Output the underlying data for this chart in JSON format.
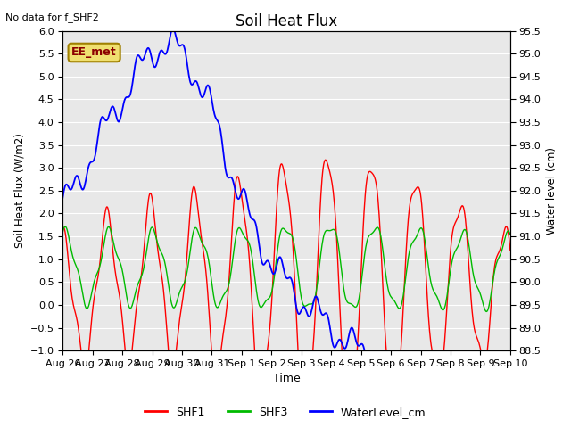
{
  "title": "Soil Heat Flux",
  "xlabel": "Time",
  "ylabel_left": "Soil Heat Flux (W/m2)",
  "ylabel_right": "Water level (cm)",
  "ylim_left": [
    -1.0,
    6.0
  ],
  "ylim_right": [
    88.5,
    95.5
  ],
  "yticks_left": [
    -1.0,
    -0.5,
    0.0,
    0.5,
    1.0,
    1.5,
    2.0,
    2.5,
    3.0,
    3.5,
    4.0,
    4.5,
    5.0,
    5.5,
    6.0
  ],
  "yticks_right": [
    88.5,
    89.0,
    89.5,
    90.0,
    90.5,
    91.0,
    91.5,
    92.0,
    92.5,
    93.0,
    93.5,
    94.0,
    94.5,
    95.0,
    95.5
  ],
  "bg_color": "#e8e8e8",
  "fig_color": "#ffffff",
  "note_text": "No data for f_SHF2",
  "box_text": "EE_met",
  "legend_labels": [
    "SHF1",
    "SHF3",
    "WaterLevel_cm"
  ],
  "line_colors": [
    "#ff0000",
    "#00bb00",
    "#0000ff"
  ],
  "xtick_labels": [
    "Aug 26",
    "Aug 27",
    "Aug 28",
    "Aug 29",
    "Aug 30",
    "Aug 31",
    "Sep 1",
    "Sep 2",
    "Sep 3",
    "Sep 4",
    "Sep 5",
    "Sep 6",
    "Sep 7",
    "Sep 8",
    "Sep 9",
    "Sep 10"
  ],
  "xtick_positions": [
    0,
    1,
    2,
    3,
    4,
    5,
    6,
    7,
    8,
    9,
    10,
    11,
    12,
    13,
    14,
    15
  ]
}
